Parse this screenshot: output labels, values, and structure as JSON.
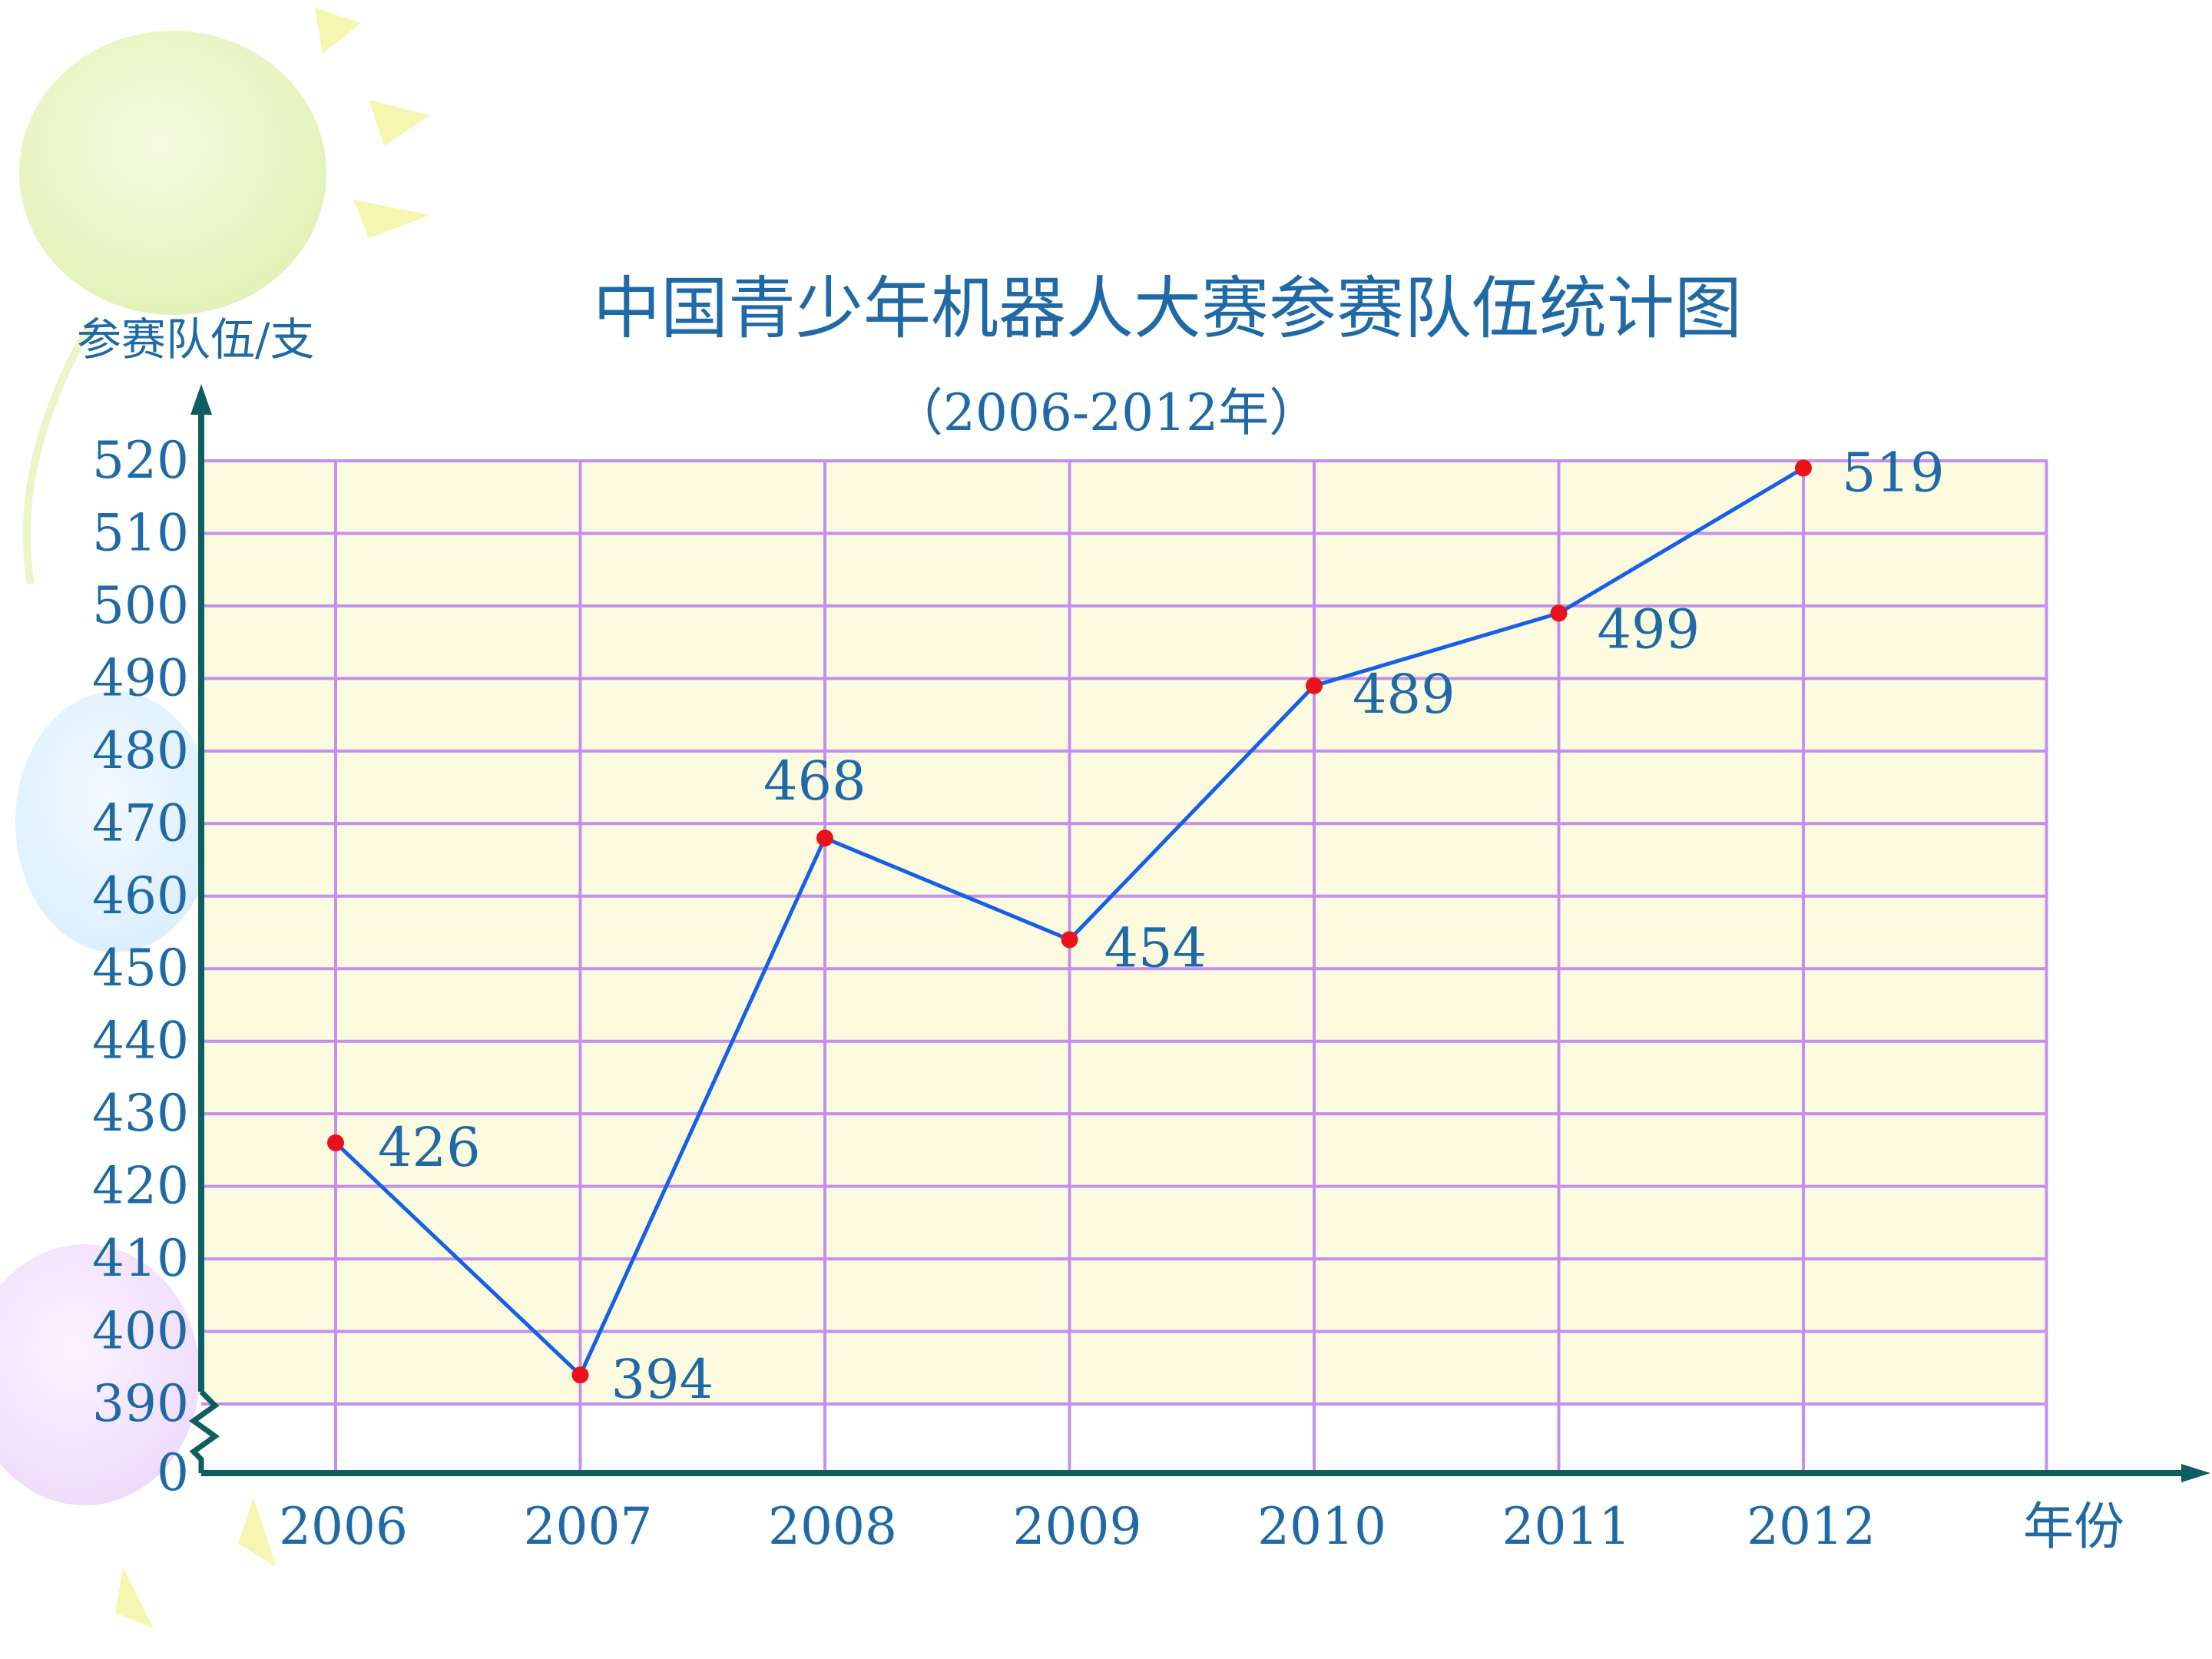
{
  "chart_data": {
    "type": "line",
    "title": "中国青少年机器人大赛参赛队伍统计图",
    "subtitle": "（2006-2012年）",
    "ylabel": "参赛队伍/支",
    "xlabel": "年份",
    "categories": [
      "2006",
      "2007",
      "2008",
      "2009",
      "2010",
      "2011",
      "2012"
    ],
    "series": [
      {
        "values": [
          426,
          394,
          468,
          454,
          489,
          499,
          519
        ]
      }
    ],
    "y_tick_labels": [
      "0",
      "390",
      "400",
      "410",
      "420",
      "430",
      "440",
      "450",
      "460",
      "470",
      "480",
      "490",
      "500",
      "510",
      "520"
    ],
    "ylim": [
      390,
      520
    ],
    "y_axis_break": true,
    "grid": true,
    "colors": {
      "plot_background": "#fcfbdf",
      "grid": "#c48ff0",
      "axis": "#0d5e5e",
      "line": "#1560e6",
      "marker": "#e8121d",
      "text": "#1f6aa6"
    }
  }
}
